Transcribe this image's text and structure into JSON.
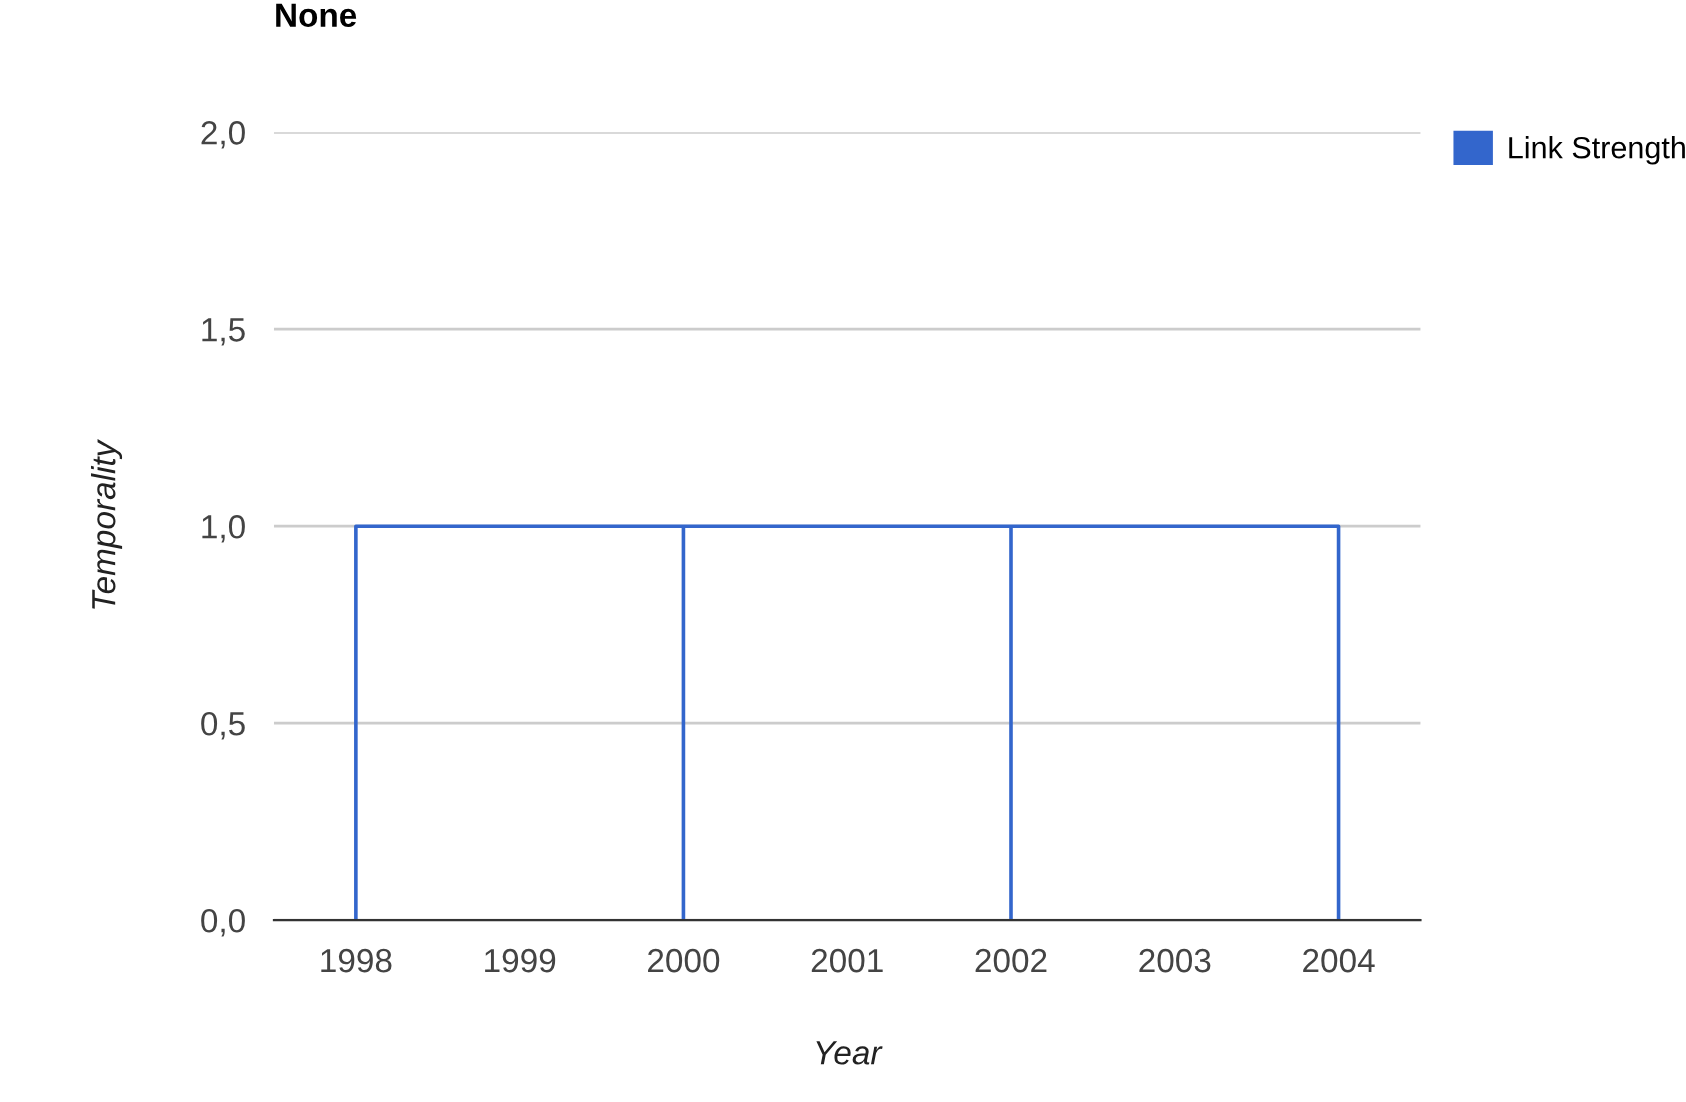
{
  "chart_data": {
    "type": "line",
    "title": "None",
    "xlabel": "Year",
    "ylabel": "Temporality",
    "series": [
      {
        "name": "Link Strength",
        "color": "#3366cc",
        "x": [
          1998,
          1998,
          2000,
          2000,
          2000,
          2002,
          2002,
          2002,
          2004,
          2004
        ],
        "values": [
          0,
          1,
          1,
          0,
          1,
          1,
          0,
          1,
          1,
          0
        ]
      }
    ],
    "xlim": [
      1997.5,
      2004.5
    ],
    "xticks": [
      1998,
      1999,
      2000,
      2001,
      2002,
      2003,
      2004
    ],
    "ylim": [
      0,
      2
    ],
    "yticks": [
      {
        "value": 0,
        "label": "0,0"
      },
      {
        "value": 0.5,
        "label": "0,5"
      },
      {
        "value": 1,
        "label": "1,0"
      },
      {
        "value": 1.5,
        "label": "1,5"
      },
      {
        "value": 2,
        "label": "2,0"
      }
    ],
    "grid": "y",
    "legend": "right",
    "marker": "none",
    "line_style": "solid"
  }
}
